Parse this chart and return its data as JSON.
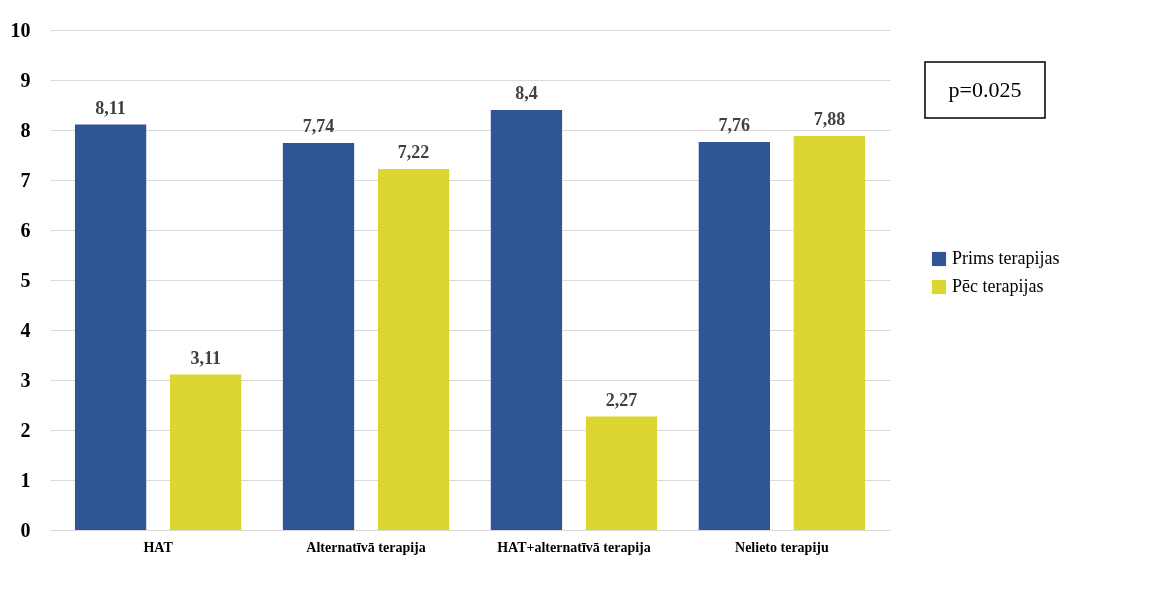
{
  "chart_data": {
    "type": "bar",
    "categories": [
      "HAT",
      "Alternatīvā terapija",
      "HAT+alternatīvā terapija",
      "Nelieto terapiju"
    ],
    "series": [
      {
        "name": "Prims terapijas",
        "color": "#2f5597",
        "values": [
          8.11,
          7.74,
          8.4,
          7.76
        ],
        "value_labels": [
          "8,11",
          "7,74",
          "8,4",
          "7,76"
        ]
      },
      {
        "name": "Pēc terapijas",
        "color": "#dbd632",
        "values": [
          3.11,
          7.22,
          2.27,
          7.88
        ],
        "value_labels": [
          "3,11",
          "7,22",
          "2,27",
          "7,88"
        ]
      }
    ],
    "ylim": [
      0,
      10
    ],
    "yticks": [
      0,
      1,
      2,
      3,
      4,
      5,
      6,
      7,
      8,
      9,
      10
    ],
    "grid": "y",
    "legend": "right",
    "annotations": [
      "p=0.025"
    ]
  }
}
